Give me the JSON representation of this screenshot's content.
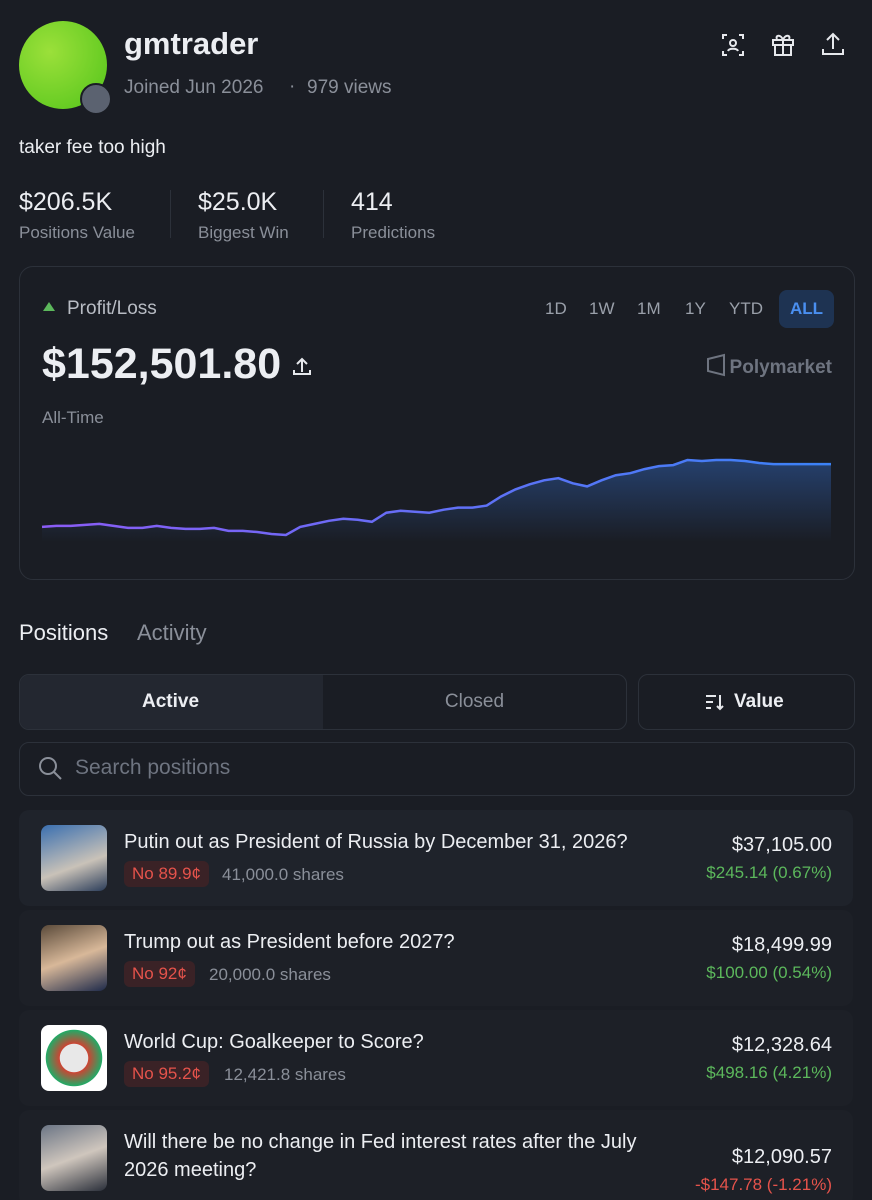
{
  "profile": {
    "username": "gmtrader",
    "joined": "Joined Jun 2026",
    "views": "979 views",
    "bio": "taker fee too high"
  },
  "stats": [
    {
      "value": "$206.5K",
      "label": "Positions Value"
    },
    {
      "value": "$25.0K",
      "label": "Biggest Win"
    },
    {
      "value": "414",
      "label": "Predictions"
    }
  ],
  "pnl": {
    "label": "Profit/Loss",
    "amount": "$152,501.80",
    "period": "All-Time",
    "brand": "Polymarket",
    "ranges": [
      "1D",
      "1W",
      "1M",
      "1Y",
      "YTD",
      "ALL"
    ],
    "active_range": 5
  },
  "chart_data": {
    "type": "line",
    "colors": [
      "#8b5cf6",
      "#3b82f6"
    ],
    "values": [
      8,
      9,
      9,
      10,
      11,
      9,
      7,
      7,
      9,
      7,
      6,
      6,
      7,
      4,
      4,
      3,
      1,
      0,
      8,
      11,
      14,
      16,
      15,
      13,
      22,
      24,
      23,
      22,
      25,
      27,
      27,
      29,
      38,
      45,
      50,
      54,
      56,
      51,
      48,
      54,
      59,
      61,
      65,
      68,
      69,
      74,
      73,
      74,
      74,
      73,
      71,
      70,
      70,
      70,
      70,
      70
    ]
  },
  "tabs": [
    "Positions",
    "Activity"
  ],
  "filters": [
    "Active",
    "Closed"
  ],
  "sort": "Value",
  "search_placeholder": "Search positions",
  "positions": [
    {
      "title": "Putin out as President of Russia by December 31, 2026?",
      "outcome": "No 89.9¢",
      "shares": "41,000.0 shares",
      "value": "$37,105.00",
      "pnl": "$245.14 (0.67%)",
      "pnl_color": "#5cb85c"
    },
    {
      "title": "Trump out as President before 2027?",
      "outcome": "No 92¢",
      "shares": "20,000.0 shares",
      "value": "$18,499.99",
      "pnl": "$100.00 (0.54%)",
      "pnl_color": "#5cb85c"
    },
    {
      "title": "World Cup: Goalkeeper to Score?",
      "outcome": "No 95.2¢",
      "shares": "12,421.8 shares",
      "value": "$12,328.64",
      "pnl": "$498.16 (4.21%)",
      "pnl_color": "#5cb85c"
    },
    {
      "title": "Will there be no change in Fed interest rates after the July 2026 meeting?",
      "value": "$12,090.57",
      "pnl": "-$147.78 (-1.21%)",
      "pnl_color": "#e5534b"
    }
  ]
}
